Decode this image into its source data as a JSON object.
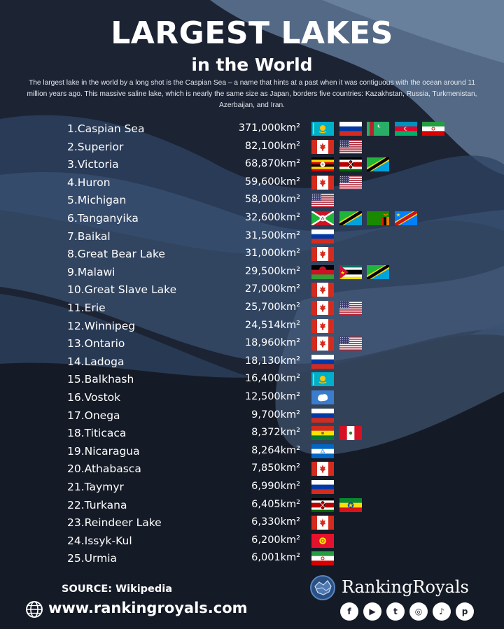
{
  "title": "LARGEST LAKES",
  "subtitle": "in the World",
  "intro": "The largest lake in the world by a long shot is the Caspian Sea – a name that hints at a past when it was contiguous with the ocean around 11 million years ago. This massive saline lake, which is nearly the same size as Japan, borders five countries: Kazakhstan, Russia, Turkmenistan, Azerbaijan, and Iran.",
  "lakes": [
    {
      "name": "1.Caspian Sea",
      "area": "371,000km²",
      "flags": [
        "kazakhstan",
        "russia",
        "turkmenistan",
        "azerbaijan",
        "iran"
      ]
    },
    {
      "name": "2.Superior",
      "area": "82,100km²",
      "flags": [
        "canada",
        "usa"
      ]
    },
    {
      "name": "3.Victoria",
      "area": "68,870km²",
      "flags": [
        "uganda",
        "kenya",
        "tanzania"
      ]
    },
    {
      "name": "4.Huron",
      "area": "59,600km²",
      "flags": [
        "canada",
        "usa"
      ]
    },
    {
      "name": "5.Michigan",
      "area": "58,000km²",
      "flags": [
        "usa"
      ]
    },
    {
      "name": "6.Tanganyika",
      "area": "32,600km²",
      "flags": [
        "burundi",
        "tanzania",
        "zambia",
        "drcongo"
      ]
    },
    {
      "name": "7.Baikal",
      "area": "31,500km²",
      "flags": [
        "russia"
      ]
    },
    {
      "name": "8.Great Bear Lake",
      "area": "31,000km²",
      "flags": [
        "canada"
      ]
    },
    {
      "name": "9.Malawi",
      "area": "29,500km²",
      "flags": [
        "malawi",
        "mozambique",
        "tanzania"
      ]
    },
    {
      "name": "10.Great Slave Lake",
      "area": "27,000km²",
      "flags": [
        "canada"
      ]
    },
    {
      "name": "11.Erie",
      "area": "25,700km²",
      "flags": [
        "canada",
        "usa"
      ]
    },
    {
      "name": "12.Winnipeg",
      "area": "24,514km²",
      "flags": [
        "canada"
      ]
    },
    {
      "name": "13.Ontario",
      "area": "18,960km²",
      "flags": [
        "canada",
        "usa"
      ]
    },
    {
      "name": "14.Ladoga",
      "area": "18,130km²",
      "flags": [
        "russia"
      ]
    },
    {
      "name": "15.Balkhash",
      "area": "16,400km²",
      "flags": [
        "kazakhstan"
      ]
    },
    {
      "name": "16.Vostok",
      "area": "12,500km²",
      "flags": [
        "antarctica"
      ]
    },
    {
      "name": "17.Onega",
      "area": "9,700km²",
      "flags": [
        "russia"
      ]
    },
    {
      "name": "18.Titicaca",
      "area": "8,372km²",
      "flags": [
        "bolivia",
        "peru"
      ]
    },
    {
      "name": "19.Nicaragua",
      "area": "8,264km²",
      "flags": [
        "nicaragua"
      ]
    },
    {
      "name": "20.Athabasca",
      "area": "7,850km²",
      "flags": [
        "canada"
      ]
    },
    {
      "name": "21.Taymyr",
      "area": "6,990km²",
      "flags": [
        "russia"
      ]
    },
    {
      "name": "22.Turkana",
      "area": "6,405km²",
      "flags": [
        "kenya",
        "ethiopia"
      ]
    },
    {
      "name": "23.Reindeer Lake",
      "area": "6,330km²",
      "flags": [
        "canada"
      ]
    },
    {
      "name": "24.Issyk-Kul",
      "area": "6,200km²",
      "flags": [
        "kyrgyzstan"
      ]
    },
    {
      "name": "25.Urmia",
      "area": "6,001km²",
      "flags": [
        "iran"
      ]
    }
  ],
  "footer": {
    "source": "SOURCE: Wikipedia",
    "website": "www.rankingroyals.com",
    "brand": "RankingRoyals",
    "website_icon": "globe-icon",
    "brand_icon": "brand-logo-icon",
    "socials": [
      {
        "icon": "facebook-icon",
        "glyph": "f"
      },
      {
        "icon": "youtube-icon",
        "glyph": "▶"
      },
      {
        "icon": "twitter-icon",
        "glyph": "t"
      },
      {
        "icon": "instagram-icon",
        "glyph": "◎"
      },
      {
        "icon": "tiktok-icon",
        "glyph": "♪"
      },
      {
        "icon": "pinterest-icon",
        "glyph": "p"
      }
    ]
  },
  "colors": {
    "background": "#1b2231",
    "wave_light": "#5f7896",
    "wave_mid": "#3a5272",
    "wave_dark": "#141a24",
    "text": "#ffffff"
  }
}
